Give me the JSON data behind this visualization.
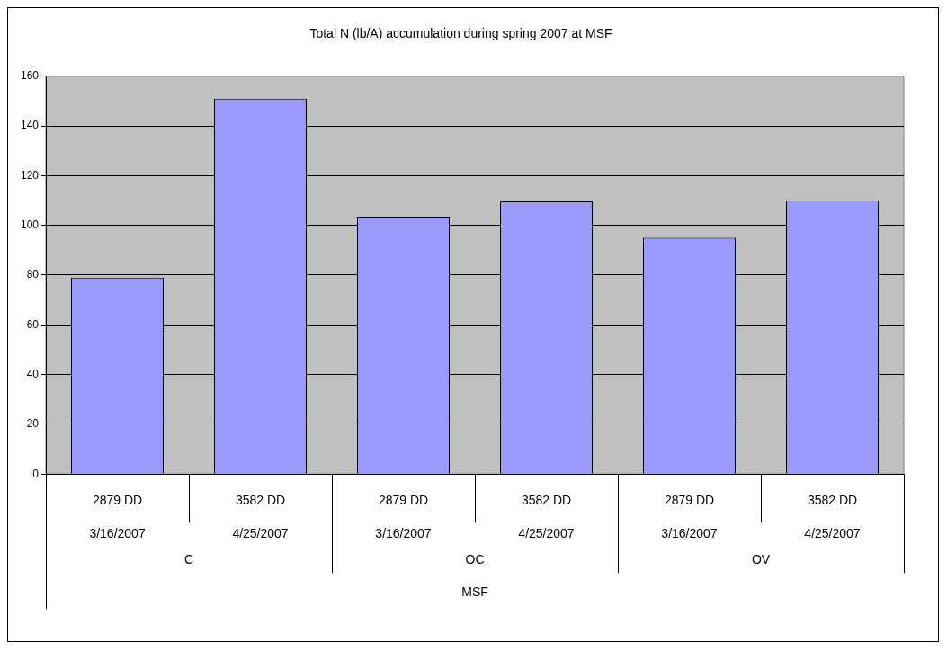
{
  "chart_data": {
    "type": "bar",
    "title": "Total N (lb/A) accumulation during spring 2007 at MSF",
    "categories": [
      "2879 DD\n3/16/2007",
      "3582 DD\n4/25/2007",
      "2879 DD\n3/16/2007",
      "3582 DD\n4/25/2007",
      "2879 DD\n3/16/2007",
      "3582 DD\n4/25/2007"
    ],
    "values": [
      79,
      151,
      103.5,
      109.7,
      95,
      110
    ],
    "color": "#9999ff",
    "annotations": [
      "C",
      "OC",
      "OV",
      "MSF"
    ],
    "ylim": [
      0,
      160
    ],
    "yticks": [
      0,
      20,
      40,
      60,
      80,
      100,
      120,
      140,
      160
    ],
    "grid": "y",
    "legend": false
  }
}
